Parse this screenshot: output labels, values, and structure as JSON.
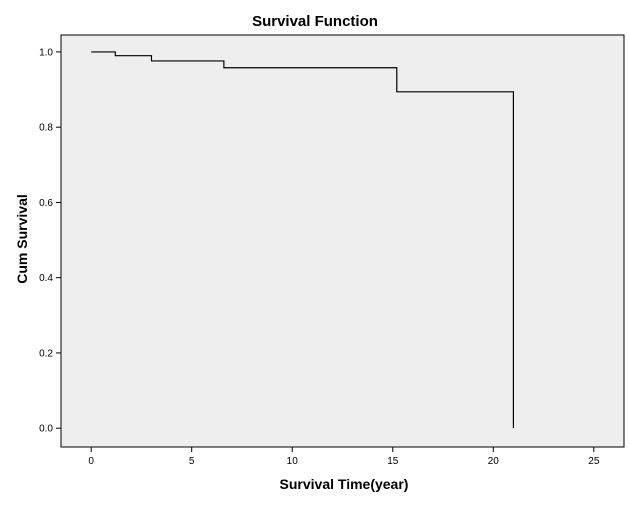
{
  "chart_data": {
    "type": "line",
    "title": "Survival  Function",
    "xlabel": "Survival Time(year)",
    "ylabel": "Cum Survival",
    "xlim": [
      -1.5,
      26.5
    ],
    "ylim": [
      -0.05,
      1.045
    ],
    "xticks": [
      0,
      5,
      10,
      15,
      20,
      25
    ],
    "yticks": [
      0.0,
      0.2,
      0.4,
      0.6,
      0.8,
      1.0
    ],
    "xtick_labels": [
      "0",
      "5",
      "10",
      "15",
      "20",
      "25"
    ],
    "ytick_labels": [
      "0.0",
      "0.2",
      "0.4",
      "0.6",
      "0.8",
      "1.0"
    ],
    "grid": false,
    "plot_background": "#eeeeee",
    "line_color": "#000000",
    "series": [
      {
        "step": "post",
        "x": [
          0,
          1.2,
          3.0,
          6.6,
          15.2,
          21.0,
          21.0
        ],
        "y": [
          1.0,
          0.99,
          0.976,
          0.958,
          0.894,
          0.894,
          0.0
        ]
      }
    ]
  }
}
